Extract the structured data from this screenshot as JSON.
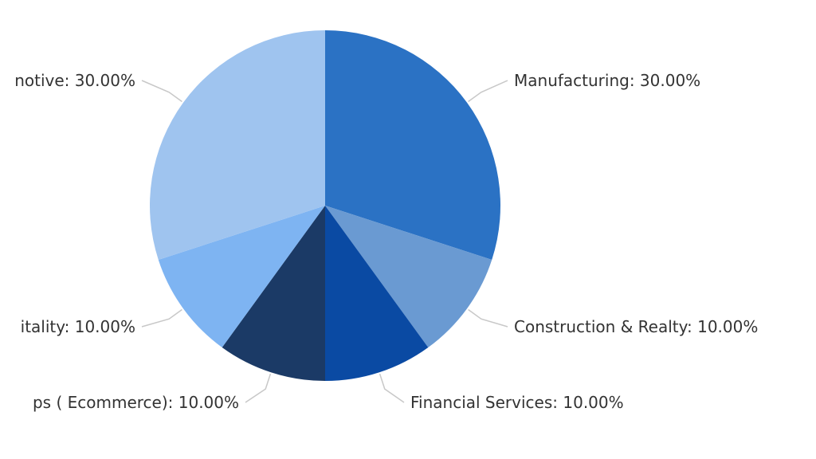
{
  "chart_data": {
    "type": "pie",
    "series": [
      {
        "name": "",
        "categories": [
          "Manufacturing",
          "Construction & Realty",
          "Financial Services",
          "Web Apps ( Ecommerce)",
          "Hospitality",
          "Automotive"
        ],
        "values": [
          30,
          10,
          10,
          10,
          10,
          30
        ],
        "labels": [
          "Manufacturing: 30.00%",
          "Construction & Realty: 10.00%",
          "Financial Services: 10.00%",
          "ps ( Ecommerce): 10.00%",
          "itality: 10.00%",
          "notive: 30.00%"
        ],
        "colors": [
          "#2b72c4",
          "#6a9ad2",
          "#0a4aa3",
          "#1b3a66",
          "#7eb4f2",
          "#9fc4ef"
        ]
      }
    ],
    "legend": "none",
    "start_angle": "12 o'clock, clockwise"
  }
}
